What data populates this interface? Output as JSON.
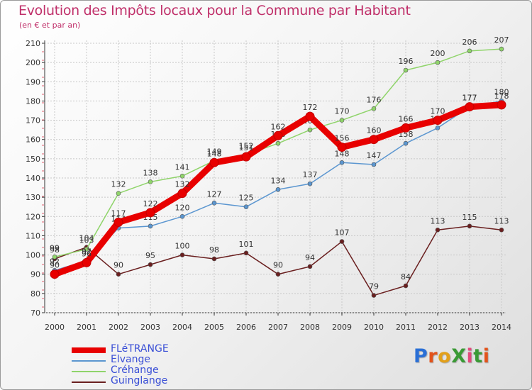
{
  "title": "Evolution des Impôts locaux pour la Commune par Habitant",
  "subtitle": "(en € et par an)",
  "logo": {
    "text": "ProXiti",
    "letter_colors": [
      "#2a6fd6",
      "#e2531b",
      "#e2a01b",
      "#3a9a35",
      "#e24a7a",
      "#3a9a35",
      "#e2531b"
    ]
  },
  "chart_data": {
    "type": "line",
    "title": "Evolution des Impôts locaux pour la Commune par Habitant",
    "subtitle": "(en € et par an)",
    "xlabel": "",
    "ylabel": "",
    "x": [
      2000,
      2001,
      2002,
      2003,
      2004,
      2005,
      2006,
      2007,
      2008,
      2009,
      2010,
      2011,
      2012,
      2013,
      2014
    ],
    "y_ticks": [
      70,
      80,
      90,
      100,
      110,
      120,
      130,
      140,
      150,
      160,
      170,
      180,
      190,
      200,
      210
    ],
    "ylim": [
      70,
      210
    ],
    "grid": true,
    "legend_position": "bottom-left",
    "series": [
      {
        "name": "Guinglange",
        "color": "#6a1f1f",
        "values": [
          98,
          104,
          90,
          95,
          100,
          98,
          101,
          90,
          94,
          107,
          79,
          84,
          113,
          115,
          113
        ],
        "labels": [
          "98",
          "104",
          "90",
          "95",
          "100",
          "98",
          "101",
          "90",
          "94",
          "107",
          "79",
          "84",
          "113",
          "115",
          "113"
        ]
      },
      {
        "name": "Créhange",
        "color": "#8fd46a",
        "values": [
          99,
          103,
          132,
          138,
          141,
          149,
          152,
          158,
          165,
          170,
          176,
          196,
          200,
          206,
          207
        ],
        "labels": [
          "99",
          "103",
          "132",
          "138",
          "141",
          "149",
          "152",
          "158",
          "165",
          "170",
          "176",
          "196",
          "200",
          "206",
          "207"
        ]
      },
      {
        "name": "Elvange",
        "color": "#5b96d0",
        "values": [
          92,
          97,
          114,
          115,
          120,
          127,
          125,
          134,
          137,
          148,
          147,
          158,
          166,
          177,
          180
        ],
        "labels": [
          "92",
          "97",
          "114",
          "115",
          "120",
          "127",
          "125",
          "134",
          "137",
          "148",
          "147",
          "158",
          "166",
          "177",
          "180"
        ]
      },
      {
        "name": "FLéTRANGE",
        "color": "#e80000",
        "values": [
          90,
          96,
          117,
          122,
          132,
          148,
          151,
          162,
          172,
          156,
          160,
          166,
          170,
          177,
          178
        ],
        "labels": [
          "90",
          "96",
          "117",
          "122",
          "132",
          "148",
          "151",
          "162",
          "172",
          "156",
          "160",
          "166",
          "170",
          "177",
          "178"
        ]
      }
    ],
    "legend": [
      "FLéTRANGE",
      "Elvange",
      "Créhange",
      "Guinglange"
    ]
  }
}
